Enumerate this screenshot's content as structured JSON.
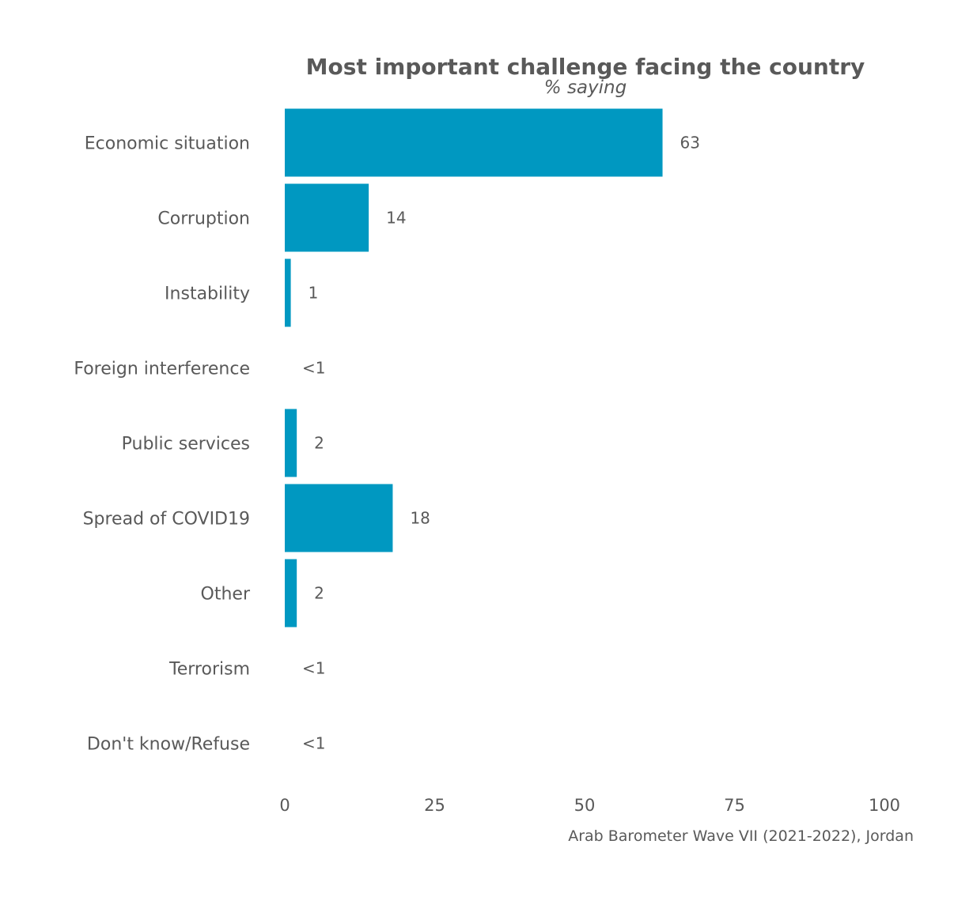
{
  "chart_data": {
    "type": "bar",
    "orientation": "horizontal",
    "title": "Most important challenge facing the country",
    "subtitle": "% saying",
    "caption": "Arab Barometer Wave VII (2021-2022), Jordan",
    "categories": [
      "Economic situation",
      "Corruption",
      "Instability",
      "Foreign interference",
      "Public services",
      "Spread of COVID19",
      "Other",
      "Terrorism",
      "Don't know/Refuse"
    ],
    "values": [
      63,
      14,
      1,
      0.3,
      2,
      18,
      2,
      0.3,
      0.3
    ],
    "value_labels": [
      "63",
      "14",
      "1",
      "<1",
      "2",
      "18",
      "2",
      "<1",
      "<1"
    ],
    "xlim": [
      0,
      100
    ],
    "xticks": [
      0,
      25,
      50,
      75,
      100
    ],
    "xtick_labels": [
      "0",
      "25",
      "50",
      "75",
      "100"
    ],
    "grid": false,
    "bar_color": "#0098C1",
    "text_color": "#595959"
  }
}
